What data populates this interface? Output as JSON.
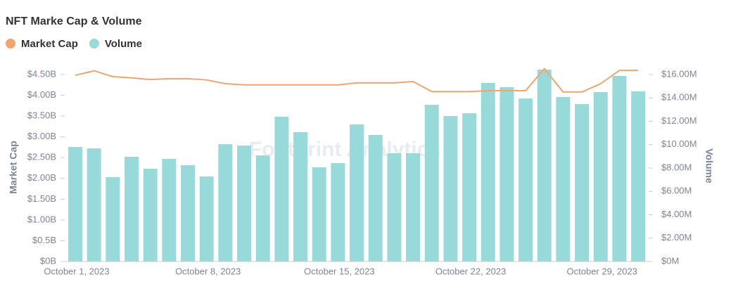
{
  "chart_data": {
    "type": "bar-line",
    "title": "NFT Marke Cap & Volume",
    "watermark": "Footprint Analytics",
    "y_label": "Market Cap",
    "y2_label": "Volume",
    "categories": [
      "October 1, 2023",
      null,
      null,
      null,
      null,
      null,
      null,
      "October 8, 2023",
      null,
      null,
      null,
      null,
      null,
      null,
      "October 15, 2023",
      null,
      null,
      null,
      null,
      null,
      null,
      "October 22, 2023",
      null,
      null,
      null,
      null,
      null,
      null,
      "October 29, 2023",
      null,
      null
    ],
    "series": [
      {
        "name": "Market Cap",
        "color": "#f0a56e",
        "kind": "line",
        "axis": "y",
        "values": [
          4.48,
          4.59,
          4.45,
          4.42,
          4.38,
          4.4,
          4.4,
          4.37,
          4.28,
          4.25,
          4.25,
          4.25,
          4.25,
          4.25,
          4.25,
          4.3,
          4.3,
          4.3,
          4.33,
          4.09,
          4.09,
          4.09,
          4.11,
          4.11,
          4.11,
          4.64,
          4.08,
          4.08,
          4.28,
          4.6,
          4.6
        ]
      },
      {
        "name": "Volume",
        "color": "#98dada",
        "kind": "bar",
        "axis": "y2",
        "values": [
          9.8,
          9.68,
          7.22,
          8.96,
          7.94,
          8.78,
          8.24,
          7.28,
          10.04,
          9.92,
          9.08,
          12.39,
          11.07,
          8.06,
          8.42,
          11.73,
          10.83,
          9.26,
          9.26,
          13.41,
          12.45,
          12.69,
          15.28,
          14.92,
          13.95,
          16.42,
          14.08,
          13.47,
          14.5,
          15.88,
          14.56
        ]
      }
    ],
    "ylim": [
      0,
      4.5
    ],
    "yticks": [
      {
        "value": 0,
        "label": "$0B"
      },
      {
        "value": 0.5,
        "label": "$0.5B"
      },
      {
        "value": 1,
        "label": "$1.00B"
      },
      {
        "value": 1.5,
        "label": "$1.50B"
      },
      {
        "value": 2,
        "label": "$2.00B"
      },
      {
        "value": 2.5,
        "label": "$2.50B"
      },
      {
        "value": 3,
        "label": "$3.00B"
      },
      {
        "value": 3.5,
        "label": "$3.50B"
      },
      {
        "value": 4,
        "label": "$4.00B"
      },
      {
        "value": 4.5,
        "label": "$4.50B"
      }
    ],
    "y2lim": [
      0,
      16
    ],
    "y2ticks": [
      {
        "value": 0,
        "label": "$0M"
      },
      {
        "value": 2,
        "label": "$2.00M"
      },
      {
        "value": 4,
        "label": "$4.00M"
      },
      {
        "value": 6,
        "label": "$6.00M"
      },
      {
        "value": 8,
        "label": "$8.00M"
      },
      {
        "value": 10,
        "label": "$10.00M"
      },
      {
        "value": 12,
        "label": "$12.00M"
      },
      {
        "value": 14,
        "label": "$14.00M"
      },
      {
        "value": 16,
        "label": "$16.00M"
      }
    ],
    "legend": "top-left"
  }
}
